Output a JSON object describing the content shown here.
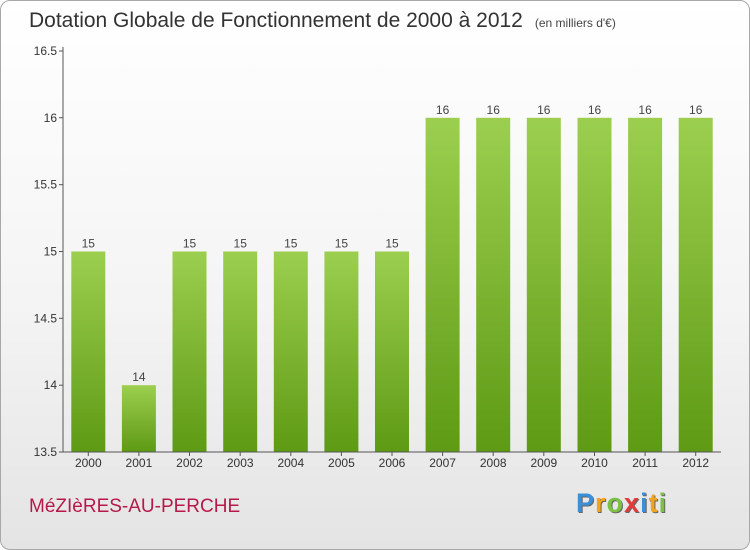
{
  "header": {
    "title": "Dotation Globale de Fonctionnement de 2000 à 2012",
    "unit": "(en milliers d'€)"
  },
  "commune": "MéZIèRES-AU-PERCHE",
  "logo": {
    "letters": [
      {
        "char": "P",
        "color": "#3a8fd6"
      },
      {
        "char": "r",
        "color": "#f2a51a"
      },
      {
        "char": "o",
        "color": "#7cc242"
      },
      {
        "char": "x",
        "color": "#e23b3b"
      },
      {
        "char": "i",
        "color": "#3a8fd6"
      },
      {
        "char": "t",
        "color": "#f2a51a"
      },
      {
        "char": "i",
        "color": "#7cc242"
      }
    ]
  },
  "chart_data": {
    "type": "bar",
    "title": "Dotation Globale de Fonctionnement de 2000 à 2012",
    "subtitle": "(en milliers d'€)",
    "xlabel": "",
    "ylabel": "",
    "categories": [
      "2000",
      "2001",
      "2002",
      "2003",
      "2004",
      "2005",
      "2006",
      "2007",
      "2008",
      "2009",
      "2010",
      "2011",
      "2012"
    ],
    "values": [
      15,
      14,
      15,
      15,
      15,
      15,
      15,
      16,
      16,
      16,
      16,
      16,
      16
    ],
    "data_labels": [
      "15",
      "14",
      "15",
      "15",
      "15",
      "15",
      "15",
      "16",
      "16",
      "16",
      "16",
      "16",
      "16"
    ],
    "yticks": [
      "13.5",
      "14",
      "14.5",
      "15",
      "15.5",
      "16",
      "16.5"
    ],
    "ylim": [
      13.5,
      16.5
    ],
    "grid": false,
    "colors": {
      "bar_light": "#9ccf4f",
      "bar_dark": "#5e9a14",
      "axis": "#555555"
    }
  }
}
